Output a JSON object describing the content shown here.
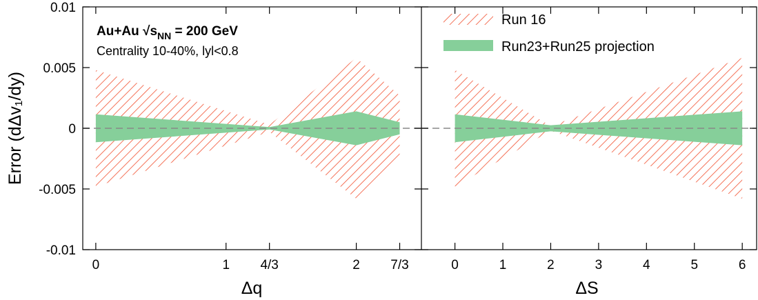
{
  "chart_data": {
    "type": "area",
    "ylabel": "Error (dΔv₁/dy)",
    "ylim": [
      -0.01,
      0.01
    ],
    "yticks": [
      "0.01",
      "0.005",
      "0",
      "-0.005",
      "-0.01"
    ],
    "ytick_values": [
      0.01,
      0.005,
      0,
      -0.005,
      -0.01
    ],
    "zero_line": "dashed",
    "legend": {
      "position": "top-right",
      "entries": [
        {
          "label": "Run 16",
          "style": "hatched",
          "color": "#f25a3b"
        },
        {
          "label": "Run23+Run25 projection",
          "style": "filled",
          "color": "#86cf9a"
        }
      ]
    },
    "annotations": {
      "energy": {
        "pre": "Au+Au √s",
        "sub": "NN",
        "post": " = 200 GeV"
      },
      "centrality": "Centrality 10-40%, lyl<0.8"
    },
    "panels": [
      {
        "xlabel": "Δq",
        "xlim": [
          -0.1,
          2.5
        ],
        "xtick_values": [
          0,
          1,
          1.3333,
          2,
          2.3333
        ],
        "xticks": [
          "0",
          "1",
          "4/3",
          "2",
          "7/3"
        ],
        "series": [
          {
            "name": "Run 16",
            "x": [
              0,
              1.3333,
              2,
              2.3333
            ],
            "y": [
              0.0048,
              0.0003,
              0.0058,
              0.0027
            ]
          },
          {
            "name": "Run23+Run25 projection",
            "x": [
              0,
              1.3333,
              2,
              2.3333
            ],
            "y": [
              0.00115,
              0.0001,
              0.0014,
              0.0005
            ]
          }
        ]
      },
      {
        "xlabel": "ΔS",
        "xlim": [
          -0.7,
          6.3
        ],
        "xtick_values": [
          0,
          1,
          2,
          3,
          4,
          5,
          6
        ],
        "xticks": [
          "0",
          "1",
          "2",
          "3",
          "4",
          "5",
          "6"
        ],
        "series": [
          {
            "name": "Run 16",
            "x": [
              0,
              2,
              6
            ],
            "y": [
              0.0048,
              0.0002,
              0.0058
            ]
          },
          {
            "name": "Run23+Run25 projection",
            "x": [
              0,
              2,
              6
            ],
            "y": [
              0.00115,
              0.00025,
              0.0014
            ]
          }
        ]
      }
    ]
  }
}
